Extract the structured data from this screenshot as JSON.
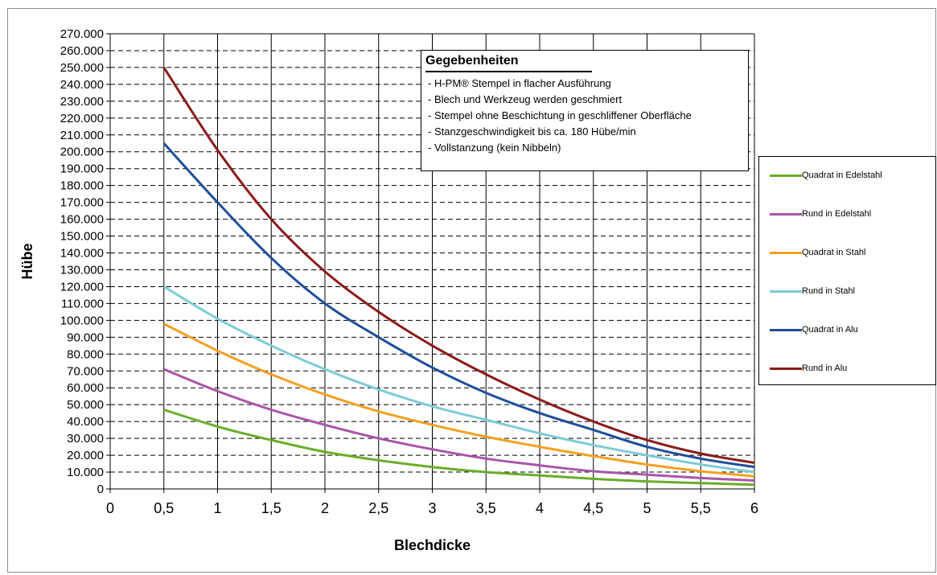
{
  "chart_data": {
    "type": "line",
    "xlabel": "Blechdicke",
    "ylabel": "Hübe",
    "xlim": [
      0,
      6
    ],
    "ylim": [
      0,
      270000
    ],
    "x_ticks": [
      "0",
      "0,5",
      "1",
      "1,5",
      "2",
      "2,5",
      "3",
      "3,5",
      "4",
      "4,5",
      "5",
      "5,5",
      "6"
    ],
    "y_ticks": [
      "0",
      "10.000",
      "20.000",
      "30.000",
      "40.000",
      "50.000",
      "60.000",
      "70.000",
      "80.000",
      "90.000",
      "100.000",
      "110.000",
      "120.000",
      "130.000",
      "140.000",
      "150.000",
      "160.000",
      "170.000",
      "180.000",
      "190.000",
      "200.000",
      "210.000",
      "220.000",
      "230.000",
      "240.000",
      "250.000",
      "260.000",
      "270.000"
    ],
    "grid": true,
    "legend_position": "right",
    "x": [
      0.5,
      1,
      1.5,
      2,
      2.5,
      3,
      3.5,
      4,
      4.5,
      5,
      5.5,
      6
    ],
    "series": [
      {
        "name": "Quadrat in Edelstahl",
        "color": "#6aad2a",
        "values": [
          47000,
          37000,
          29000,
          22000,
          17000,
          13000,
          10000,
          8000,
          6000,
          4500,
          3500,
          2500
        ]
      },
      {
        "name": "Rund in Edelstahl",
        "color": "#a855a8",
        "values": [
          71000,
          58000,
          47000,
          38000,
          30000,
          23500,
          18000,
          14000,
          10500,
          8500,
          6500,
          5000
        ]
      },
      {
        "name": "Quadrat in Stahl",
        "color": "#f5a020",
        "values": [
          98000,
          82000,
          68000,
          56000,
          46000,
          38000,
          31000,
          25000,
          19500,
          14500,
          10500,
          7500
        ]
      },
      {
        "name": "Rund in Stahl",
        "color": "#7dcbd6",
        "values": [
          120000,
          101000,
          85000,
          71000,
          59000,
          49000,
          41000,
          33000,
          26000,
          20000,
          14500,
          10000
        ]
      },
      {
        "name": "Quadrat in Alu",
        "color": "#1f4e9a",
        "values": [
          205000,
          170000,
          137000,
          110000,
          90000,
          72000,
          57000,
          45000,
          35000,
          25000,
          18000,
          13000
        ]
      },
      {
        "name": "Rund in Alu",
        "color": "#8b1a1a",
        "values": [
          250000,
          201000,
          160000,
          129000,
          105000,
          85000,
          68000,
          53000,
          40000,
          29000,
          21000,
          15500
        ]
      }
    ]
  },
  "info": {
    "title": "Gegebenheiten",
    "lines": [
      "- H-PM® Stempel in flacher Ausführung",
      "- Blech und Werkzeug werden geschmiert",
      "- Stempel ohne Beschichtung in geschliffener Oberfläche",
      "- Stanzgeschwindigkeit bis ca. 180 Hübe/min",
      "- Vollstanzung (kein Nibbeln)"
    ]
  }
}
